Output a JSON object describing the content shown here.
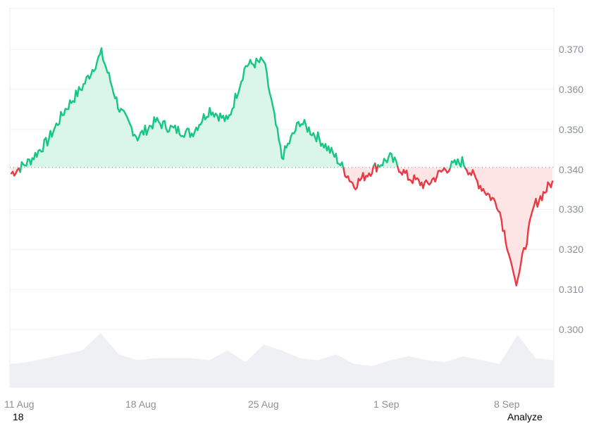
{
  "chart_data": {
    "type": "area",
    "title": "",
    "xlabel": "",
    "ylabel": "",
    "ylim": [
      0.29,
      0.373
    ],
    "grid": true,
    "legend": null,
    "baseline": 0.3405,
    "baseline_style": "dotted",
    "colors": {
      "above": "#16c784",
      "below": "#ea3943",
      "above_fill": "#d5f5e6",
      "below_fill": "#fde2e3",
      "volume": "#eef0f3",
      "grid": "#eff1f4",
      "tick_text": "#8a9099"
    },
    "y_ticks": [
      "0.370",
      "0.360",
      "0.350",
      "0.340",
      "0.330",
      "0.320",
      "0.310",
      "0.300"
    ],
    "x_ticks": [
      "11 Aug",
      "18 Aug",
      "25 Aug",
      "1 Sep",
      "8 Sep"
    ],
    "series": [
      {
        "name": "price",
        "x": [
          "11 Aug",
          "12 Aug",
          "13 Aug",
          "14 Aug",
          "15 Aug",
          "16 Aug",
          "17 Aug",
          "18 Aug",
          "19 Aug",
          "20 Aug",
          "21 Aug",
          "22 Aug",
          "23 Aug",
          "24 Aug",
          "25 Aug",
          "26 Aug",
          "27 Aug",
          "28 Aug",
          "29 Aug",
          "30 Aug",
          "31 Aug",
          "1 Sep",
          "2 Sep",
          "3 Sep",
          "4 Sep",
          "5 Sep",
          "6 Sep",
          "7 Sep",
          "8 Sep",
          "9 Sep",
          "10 Sep"
        ],
        "values": [
          0.339,
          0.342,
          0.347,
          0.355,
          0.361,
          0.369,
          0.355,
          0.348,
          0.352,
          0.35,
          0.349,
          0.355,
          0.352,
          0.366,
          0.367,
          0.343,
          0.352,
          0.348,
          0.343,
          0.336,
          0.34,
          0.343,
          0.338,
          0.336,
          0.34,
          0.342,
          0.336,
          0.331,
          0.311,
          0.331,
          0.337
        ]
      },
      {
        "name": "volume",
        "x": [
          "11 Aug",
          "12 Aug",
          "13 Aug",
          "14 Aug",
          "15 Aug",
          "16 Aug",
          "17 Aug",
          "18 Aug",
          "19 Aug",
          "20 Aug",
          "21 Aug",
          "22 Aug",
          "23 Aug",
          "24 Aug",
          "25 Aug",
          "26 Aug",
          "27 Aug",
          "28 Aug",
          "29 Aug",
          "30 Aug",
          "31 Aug",
          "1 Sep",
          "2 Sep",
          "3 Sep",
          "4 Sep",
          "5 Sep",
          "6 Sep",
          "7 Sep",
          "8 Sep",
          "9 Sep",
          "10 Sep"
        ],
        "values": [
          0.2,
          0.25,
          0.35,
          0.45,
          0.55,
          1.0,
          0.45,
          0.3,
          0.35,
          0.35,
          0.35,
          0.3,
          0.55,
          0.25,
          0.7,
          0.55,
          0.35,
          0.3,
          0.45,
          0.2,
          0.15,
          0.3,
          0.4,
          0.3,
          0.25,
          0.4,
          0.3,
          0.2,
          0.95,
          0.35,
          0.3
        ]
      }
    ]
  },
  "axis": {
    "y": [
      "0.370",
      "0.360",
      "0.350",
      "0.340",
      "0.330",
      "0.320",
      "0.310",
      "0.300"
    ],
    "x": [
      "11 Aug",
      "18 Aug",
      "25 Aug",
      "1 Sep",
      "8 Sep"
    ]
  },
  "footer": {
    "left_label": "18",
    "right_label": "Analyze"
  }
}
